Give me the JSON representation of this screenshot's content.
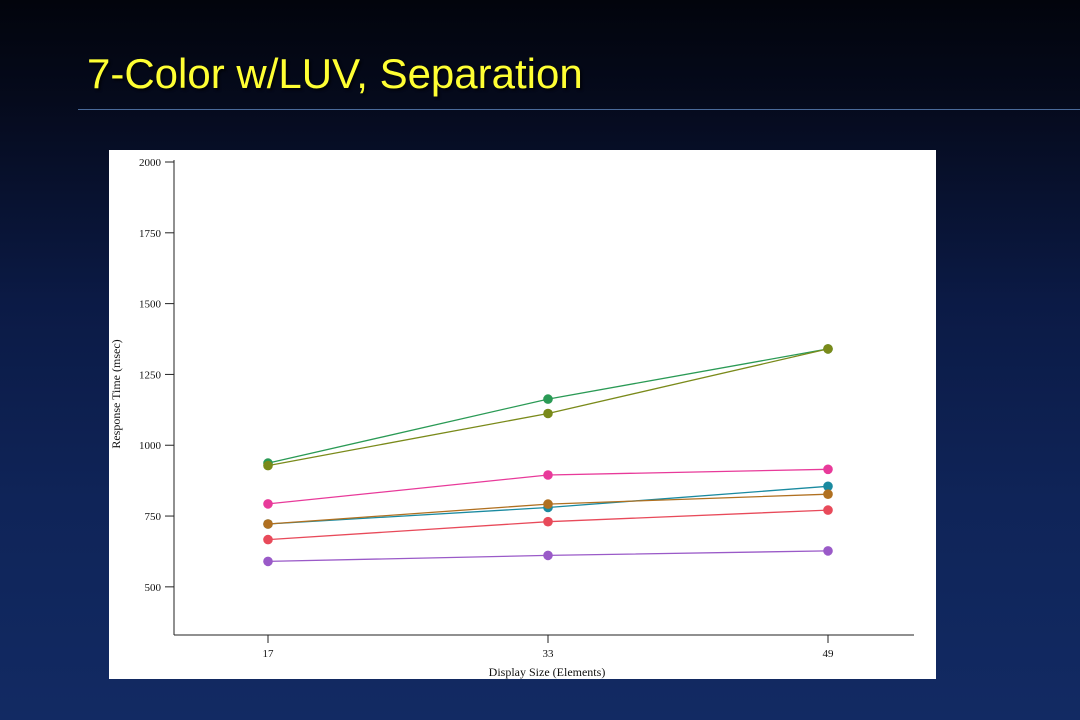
{
  "slide": {
    "title": "7-Color w/LUV, Separation"
  },
  "chart_data": {
    "type": "line",
    "xlabel": "Display Size (Elements)",
    "ylabel": "Response Time (msec)",
    "x": [
      17,
      33,
      49
    ],
    "x_tick_labels": [
      "17",
      "33",
      "49"
    ],
    "ylim": [
      330,
      2000
    ],
    "y_ticks": [
      500,
      750,
      1000,
      1250,
      1500,
      1750,
      2000
    ],
    "y_tick_labels": [
      "500",
      "750",
      "1000",
      "1250",
      "1500",
      "1750",
      "2000"
    ],
    "grid": false,
    "legend": "none",
    "series": [
      {
        "color": "#2a9a55",
        "values": [
          937,
          1163,
          1340
        ]
      },
      {
        "color": "#7a8a1a",
        "values": [
          928,
          1112,
          1340
        ]
      },
      {
        "color": "#e83a9a",
        "values": [
          793,
          895,
          915
        ]
      },
      {
        "color": "#1a8aa0",
        "values": [
          722,
          780,
          855
        ]
      },
      {
        "color": "#b07020",
        "values": [
          722,
          792,
          827
        ]
      },
      {
        "color": "#e84a5a",
        "values": [
          667,
          730,
          771
        ]
      },
      {
        "color": "#9a5ac8",
        "values": [
          590,
          611,
          627
        ]
      }
    ]
  }
}
